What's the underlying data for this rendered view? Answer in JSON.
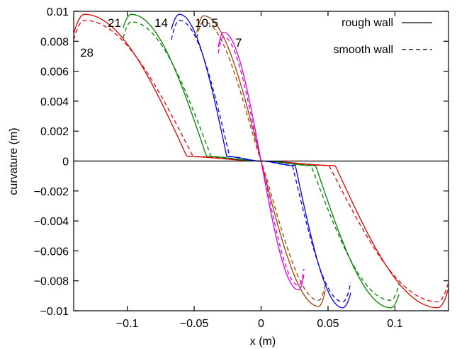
{
  "chart_data": {
    "type": "line",
    "xlabel": "x (m)",
    "ylabel": "curvature (m)",
    "xlim": [
      -0.14,
      0.14
    ],
    "ylim": [
      -0.01,
      0.01
    ],
    "xticks": [
      {
        "value": -0.1,
        "label": "−0.1"
      },
      {
        "value": -0.05,
        "label": "−0.05"
      },
      {
        "value": 0,
        "label": "0"
      },
      {
        "value": 0.05,
        "label": "0.05"
      },
      {
        "value": 0.1,
        "label": "0.1"
      }
    ],
    "yticks": [
      {
        "value": 0.01,
        "label": "0.01"
      },
      {
        "value": 0.008,
        "label": "0.008"
      },
      {
        "value": 0.006,
        "label": "0.006"
      },
      {
        "value": 0.004,
        "label": "0.004"
      },
      {
        "value": 0.002,
        "label": "0.002"
      },
      {
        "value": 0,
        "label": "0"
      },
      {
        "value": -0.002,
        "label": "−0.002"
      },
      {
        "value": -0.004,
        "label": "−0.004"
      },
      {
        "value": -0.006,
        "label": "−0.006"
      },
      {
        "value": -0.008,
        "label": "−0.008"
      },
      {
        "value": -0.01,
        "label": "−0.01"
      }
    ],
    "zero_line": true,
    "grid": false,
    "legend": {
      "position": "top-right",
      "entries": [
        {
          "label": "rough wall",
          "dash": "solid"
        },
        {
          "label": "smooth wall",
          "dash": "dashed"
        }
      ]
    },
    "curves": [
      {
        "label": "28",
        "color": "#e00000",
        "xmin": -0.14,
        "peak_x": -0.132,
        "peak_rough": 0.0098,
        "peak_smooth": 0.0094,
        "edge_rough": 0.0085,
        "edge_smooth": 0.0081
      },
      {
        "label": "21",
        "color": "#008000",
        "xmin": -0.103,
        "peak_x": -0.097,
        "peak_rough": 0.0098,
        "peak_smooth": 0.0093,
        "edge_rough": 0.0089,
        "edge_smooth": 0.0082
      },
      {
        "label": "14",
        "color": "#0000e0",
        "xmin": -0.067,
        "peak_x": -0.061,
        "peak_rough": 0.0098,
        "peak_smooth": 0.0094,
        "edge_rough": 0.0088,
        "edge_smooth": 0.0081
      },
      {
        "label": "10.5",
        "color": "#a04000",
        "xmin": -0.048,
        "peak_x": -0.043,
        "peak_rough": 0.0097,
        "peak_smooth": 0.0093,
        "edge_rough": 0.0086,
        "edge_smooth": 0.0082
      },
      {
        "label": "7",
        "color": "#e000e0",
        "xmin": -0.032,
        "peak_x": -0.028,
        "peak_rough": 0.0086,
        "peak_smooth": 0.0083,
        "edge_rough": 0.0076,
        "edge_smooth": 0.0072
      }
    ]
  }
}
